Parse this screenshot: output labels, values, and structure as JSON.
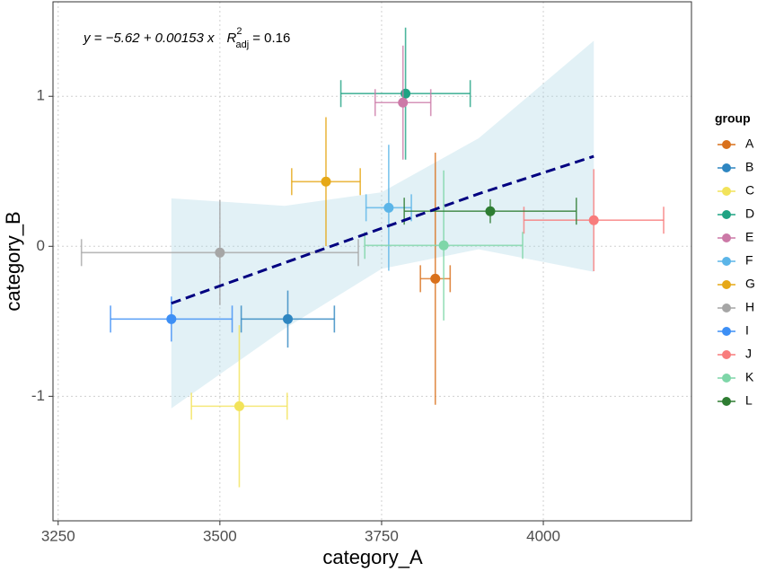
{
  "chart_data": {
    "type": "scatter",
    "x_label": "category_A",
    "y_label": "category_B",
    "legend_title": "group",
    "legend_position": "right",
    "grid": true,
    "xlim": [
      3242,
      4229
    ],
    "ylim": [
      -1.83,
      1.63
    ],
    "xticks": [
      3250,
      3500,
      3750,
      4000
    ],
    "yticks": [
      -1,
      0,
      1
    ],
    "annotation": {
      "equation": "y = −5.62 + 0.00153 x",
      "r2_symbol": "R",
      "r2_superscript": "2",
      "r2_subscript": "adj",
      "r2_value": "= 0.16"
    },
    "fit": {
      "color": "#000080",
      "band_color": "#add8e6",
      "x": [
        3425,
        3600,
        3750,
        3900,
        4078
      ],
      "y": [
        -0.38,
        -0.11,
        0.12,
        0.35,
        0.6
      ],
      "upper": [
        0.32,
        0.27,
        0.36,
        0.72,
        1.37
      ],
      "lower": [
        -1.08,
        -0.55,
        -0.15,
        -0.02,
        -0.17
      ]
    },
    "series": [
      {
        "name": "A",
        "color": "#d9711c",
        "x": 3833,
        "y": -0.216,
        "xerr": 23,
        "yerr": 0.84
      },
      {
        "name": "B",
        "color": "#2e86c1",
        "x": 3605,
        "y": -0.485,
        "xerr": 72,
        "yerr": 0.19
      },
      {
        "name": "C",
        "color": "#f2e35a",
        "x": 3530,
        "y": -1.066,
        "xerr": 74,
        "yerr": 0.54
      },
      {
        "name": "D",
        "color": "#1fa383",
        "x": 3787,
        "y": 1.018,
        "xerr": 100,
        "yerr": 0.44
      },
      {
        "name": "E",
        "color": "#cc79a7",
        "x": 3783,
        "y": 0.958,
        "xerr": 43,
        "yerr": 0.38
      },
      {
        "name": "F",
        "color": "#5bb5e8",
        "x": 3761,
        "y": 0.257,
        "xerr": 35,
        "yerr": 0.42
      },
      {
        "name": "G",
        "color": "#e6a817",
        "x": 3664,
        "y": 0.431,
        "xerr": 53,
        "yerr": 0.43
      },
      {
        "name": "H",
        "color": "#a6a6a6",
        "x": 3500,
        "y": -0.042,
        "xerr": 214,
        "yerr": 0.35
      },
      {
        "name": "I",
        "color": "#3d8ff5",
        "x": 3425,
        "y": -0.485,
        "xerr": 94,
        "yerr": 0.15
      },
      {
        "name": "J",
        "color": "#f87c7c",
        "x": 4078,
        "y": 0.174,
        "xerr": 108,
        "yerr": 0.34
      },
      {
        "name": "K",
        "color": "#7ed6a8",
        "x": 3846,
        "y": 0.006,
        "xerr": 122,
        "yerr": 0.5
      },
      {
        "name": "L",
        "color": "#2e7d32",
        "x": 3918,
        "y": 0.234,
        "xerr": 133,
        "yerr": 0.08
      }
    ]
  }
}
